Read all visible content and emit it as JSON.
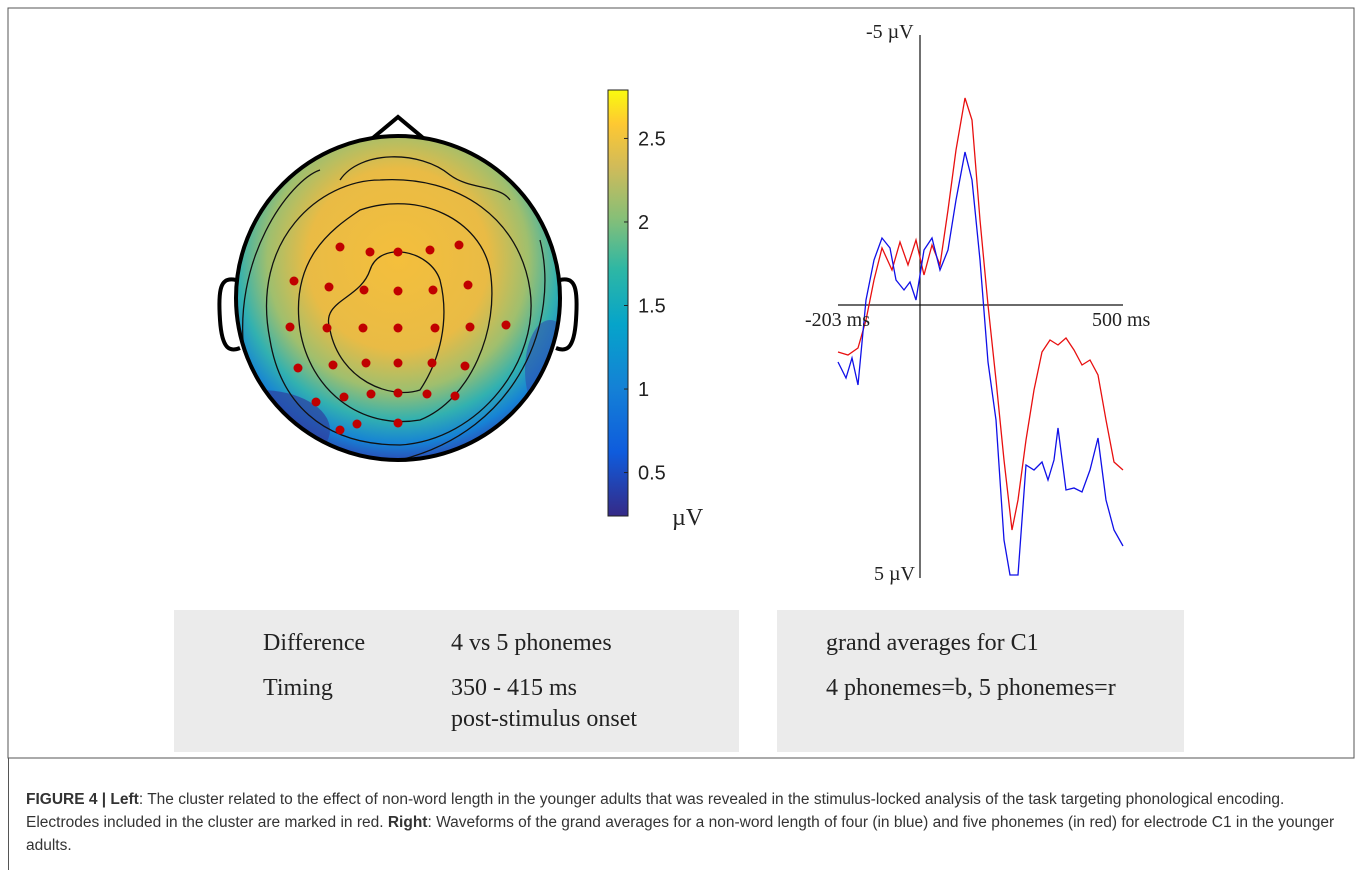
{
  "figure": {
    "colorbar": {
      "lim": [
        0.24,
        2.79
      ],
      "ticks": [
        0.5,
        1,
        1.5,
        2,
        2.5
      ],
      "unit": "µV"
    },
    "erp": {
      "top_label": "-5 µV",
      "bottom_label": "5 µV",
      "left_label": "-203 ms",
      "right_label": "500 ms"
    },
    "left_box": {
      "rows": [
        [
          "Difference",
          "4 vs 5 phonemes"
        ],
        [
          "Timing",
          "350 - 415 ms"
        ]
      ],
      "note": "post-stimulus onset"
    },
    "right_box": {
      "lines": [
        "grand averages for C1",
        "4 phonemes=b, 5 phonemes=r"
      ]
    }
  },
  "caption": {
    "label": "FIGURE 4 | Left",
    "text1": ": The cluster related to the effect of non-word length in the younger adults that was revealed in the stimulus-locked analysis of the task targeting phonological encoding. Electrodes included in the cluster are marked in red. ",
    "bold2": "Right",
    "text2": ": Waveforms of the grand averages for a non-word length of four (in blue) and five phonemes (in red) for electrode C1 in the younger adults."
  }
}
